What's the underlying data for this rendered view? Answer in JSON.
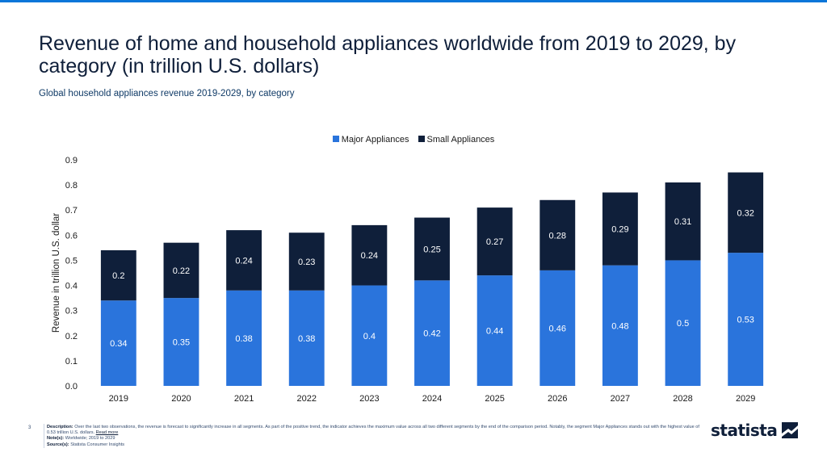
{
  "page": {
    "title": "Revenue of home and household appliances worldwide from 2019 to 2029, by category (in trillion U.S. dollars)",
    "subtitle": "Global household appliances revenue 2019-2029, by category",
    "page_number": "3"
  },
  "footer": {
    "description_label": "Description:",
    "description": "Over the last two observations, the revenue is forecast to significantly increase in all segments. As part of the positive trend, the indicator achieves the maximum value across all two different segments by the end of the comparison period. Notably, the segment Major Appliances stands out with the highest value of 0.53 trillion U.S. dollars.",
    "read_more": "Read more",
    "notes_label": "Note(s):",
    "notes": "Worldwide; 2019 to 2029",
    "source_label": "Source(s):",
    "source": "Statista Consumer Insights"
  },
  "brand": {
    "name": "statista",
    "icon": "statista-logo-icon"
  },
  "colors": {
    "major": "#2a74dc",
    "small": "#0f1f3a",
    "accent": "#0b76d9"
  },
  "chart_data": {
    "type": "bar",
    "stacked": true,
    "categories": [
      "2019",
      "2020",
      "2021",
      "2022",
      "2023",
      "2024",
      "2025",
      "2026",
      "2027",
      "2028",
      "2029"
    ],
    "series": [
      {
        "name": "Major Appliances",
        "color": "#2a74dc",
        "values": [
          0.34,
          0.35,
          0.38,
          0.38,
          0.4,
          0.42,
          0.44,
          0.46,
          0.48,
          0.5,
          0.53
        ]
      },
      {
        "name": "Small Appliances",
        "color": "#0f1f3a",
        "values": [
          0.2,
          0.22,
          0.24,
          0.23,
          0.24,
          0.25,
          0.27,
          0.28,
          0.29,
          0.31,
          0.32
        ]
      }
    ],
    "value_labels": [
      [
        "0.34",
        "0.35",
        "0.38",
        "0.38",
        "0.4",
        "0.42",
        "0.44",
        "0.46",
        "0.48",
        "0.5",
        "0.53"
      ],
      [
        "0.2",
        "0.22",
        "0.24",
        "0.23",
        "0.24",
        "0.25",
        "0.27",
        "0.28",
        "0.29",
        "0.31",
        "0.32"
      ]
    ],
    "ylabel": "Revenue in trillion U.S. dollar",
    "xlabel": "",
    "ylim": [
      0,
      0.9
    ],
    "yticks": [
      "0.0",
      "0.1",
      "0.2",
      "0.3",
      "0.4",
      "0.5",
      "0.6",
      "0.7",
      "0.8",
      "0.9"
    ],
    "ytick_values": [
      0,
      0.1,
      0.2,
      0.3,
      0.4,
      0.5,
      0.6,
      0.7,
      0.8,
      0.9
    ],
    "grid": false,
    "legend_position": "top-center"
  }
}
